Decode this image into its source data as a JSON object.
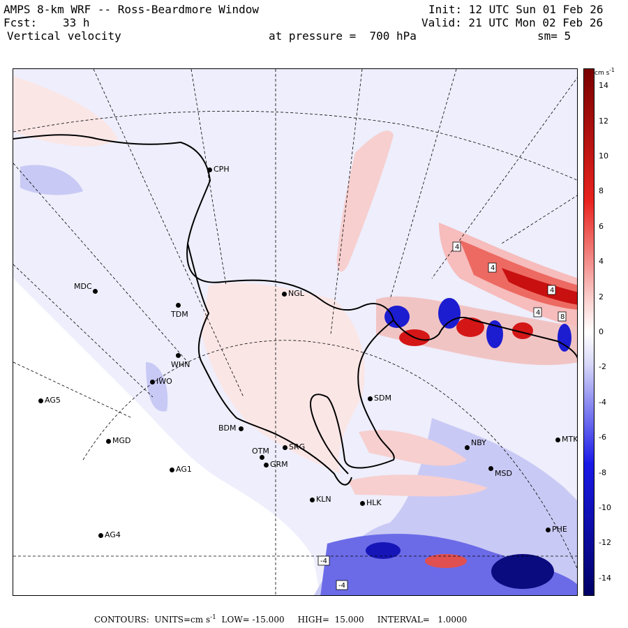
{
  "header": {
    "title": "AMPS 8-km WRF -- Ross-Beardmore Window",
    "init": "Init: 12 UTC Sun 01 Feb 26",
    "fcst_label": "Fcst:",
    "fcst_value": "33 h",
    "valid": "Valid: 21 UTC Mon 02 Feb 26",
    "field": "Vertical velocity",
    "pressure": "at pressure =  700 hPa",
    "smooth": "sm= 5"
  },
  "stations": [
    {
      "id": "CPH"
    },
    {
      "id": "NGL"
    },
    {
      "id": "MDC"
    },
    {
      "id": "TDM"
    },
    {
      "id": "WHN"
    },
    {
      "id": "IWO"
    },
    {
      "id": "AG5"
    },
    {
      "id": "SDM"
    },
    {
      "id": "MGD"
    },
    {
      "id": "BDM"
    },
    {
      "id": "SRG"
    },
    {
      "id": "OTM"
    },
    {
      "id": "GRM"
    },
    {
      "id": "AG1"
    },
    {
      "id": "NBY"
    },
    {
      "id": "MTK"
    },
    {
      "id": "MSD"
    },
    {
      "id": "KLN"
    },
    {
      "id": "HLK"
    },
    {
      "id": "AG4"
    },
    {
      "id": "PHE"
    }
  ],
  "contour_labels": [
    "4",
    "4",
    "4",
    "4",
    "8",
    "-4",
    "-4"
  ],
  "colorbar": {
    "unit": "cm s",
    "unit_exp": "-1",
    "ticks": [
      "14",
      "12",
      "10",
      "8",
      "6",
      "4",
      "2",
      "0",
      "-2",
      "-4",
      "-6",
      "-8",
      "-10",
      "-12",
      "-14"
    ],
    "min": -15,
    "max": 15,
    "colors": {
      "positive_max": "#7a0000",
      "positive_mid": "#e8231e",
      "positive_low": "#fbd2d0",
      "zero": "#ffffff",
      "negative_low": "#d8d8f8",
      "negative_mid": "#1a1ae8",
      "negative_max": "#000066"
    }
  },
  "footer": {
    "contours": "CONTOURS:  UNITS=cm s",
    "units_exp": "-1",
    "low": "LOW= -15.000",
    "high": "HIGH=  15.000",
    "interval": "INTERVAL=   1.0000"
  }
}
